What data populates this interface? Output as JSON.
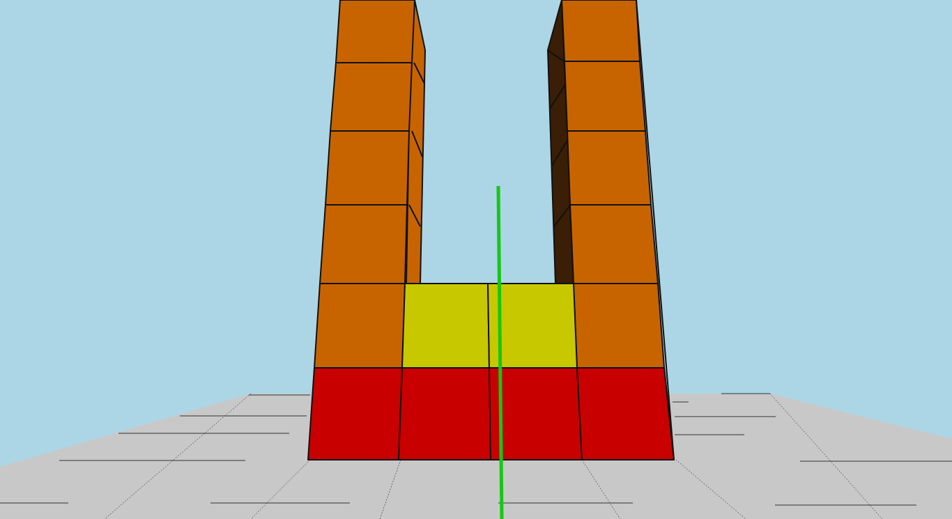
{
  "scene": {
    "colors": {
      "sky": "#acd6e6",
      "ground": "#c8c8c8",
      "ground_lines": "#000000",
      "block_orange": "#c86400",
      "block_red": "#c80000",
      "block_yellow": "#c8c800",
      "block_dark_side": "#3a1e05",
      "block_outline": "#111111",
      "cursor_line": "#14c814"
    },
    "structure": {
      "left_tower_orange_blocks": 5,
      "right_tower_orange_blocks": 5,
      "base_red_blocks": 4,
      "middle_yellow_blocks": 2
    },
    "cursor": {
      "icon": "vertical-aim-line"
    }
  }
}
